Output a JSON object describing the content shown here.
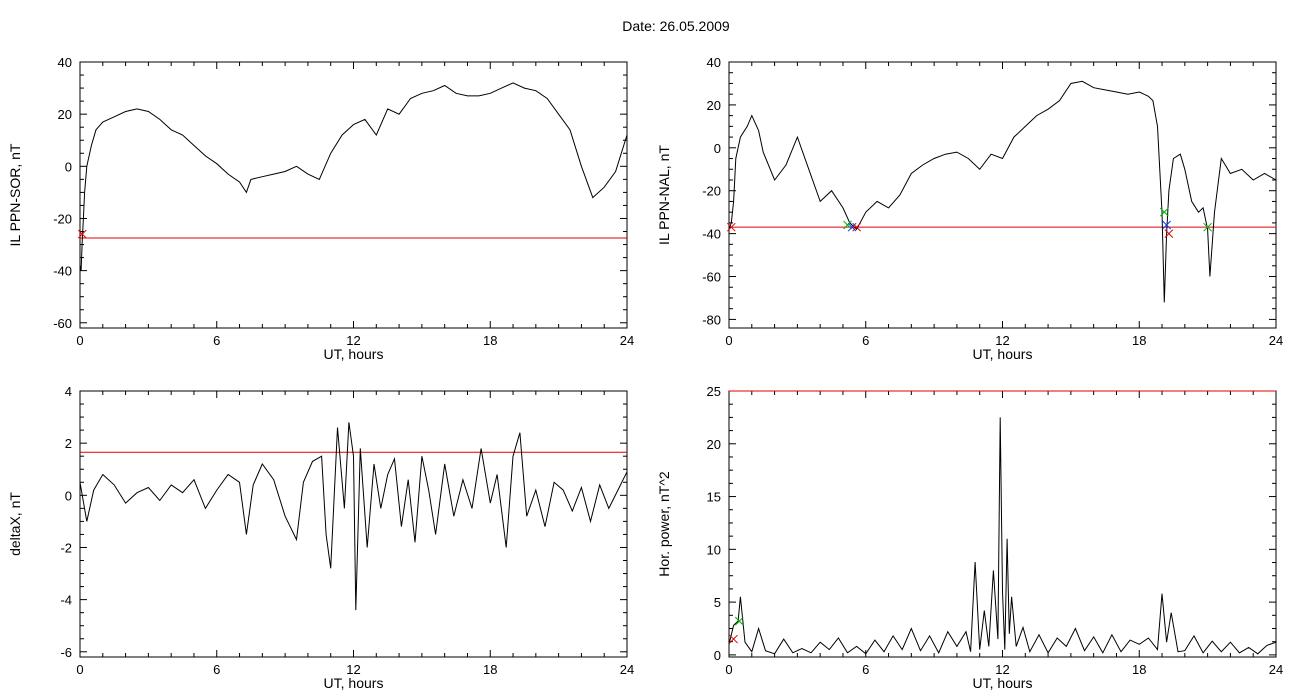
{
  "figure": {
    "title": "Date:  26.05.2009"
  },
  "chart_data": [
    {
      "id": "il-sor",
      "type": "line",
      "xlabel": "UT, hours",
      "ylabel": "IL PPN-SOR, nT",
      "xlim": [
        0,
        24
      ],
      "ylim": [
        -62,
        40
      ],
      "xticks": [
        0,
        6,
        12,
        18,
        24
      ],
      "yticks": [
        -60,
        -40,
        -20,
        0,
        20,
        40
      ],
      "threshold": -27.5,
      "series": [
        {
          "x": [
            0.0,
            0.05,
            0.1,
            0.15,
            0.2,
            0.3,
            0.5,
            0.7,
            1.0,
            1.5,
            2.0,
            2.5,
            3.0,
            3.5,
            4.0,
            4.5,
            5.0,
            5.5,
            6.0,
            6.5,
            7.0,
            7.3,
            7.5,
            8.0,
            8.5,
            9.0,
            9.5,
            10.0,
            10.5,
            11.0,
            11.5,
            12.0,
            12.5,
            13.0,
            13.5,
            14.0,
            14.5,
            15.0,
            15.5,
            16.0,
            16.5,
            17.0,
            17.5,
            18.0,
            18.5,
            19.0,
            19.5,
            20.0,
            20.5,
            21.0,
            21.5,
            22.0,
            22.5,
            23.0,
            23.5,
            24.0
          ],
          "values": [
            -38,
            -40,
            -28,
            -20,
            -10,
            0,
            8,
            14,
            17,
            19,
            21,
            22,
            21,
            18,
            14,
            12,
            8,
            4,
            1,
            -3,
            -6,
            -10,
            -5,
            -4,
            -3,
            -2,
            0,
            -3,
            -5,
            5,
            12,
            16,
            18,
            12,
            22,
            20,
            26,
            28,
            29,
            31,
            28,
            27,
            27,
            28,
            30,
            32,
            30,
            29,
            26,
            20,
            14,
            0,
            -12,
            -8,
            -2,
            12
          ]
        }
      ],
      "markers": {
        "x": [
          0.1
        ],
        "y": [
          -26
        ]
      }
    },
    {
      "id": "il-nal",
      "type": "line",
      "xlabel": "UT, hours",
      "ylabel": "IL PPN-NAL, nT",
      "xlim": [
        0,
        24
      ],
      "ylim": [
        -84,
        40
      ],
      "xticks": [
        0,
        6,
        12,
        18,
        24
      ],
      "yticks": [
        -80,
        -60,
        -40,
        -20,
        0,
        20,
        40
      ],
      "threshold": -37,
      "series": [
        {
          "x": [
            0.0,
            0.1,
            0.2,
            0.3,
            0.5,
            0.8,
            1.0,
            1.3,
            1.5,
            2.0,
            2.5,
            3.0,
            3.5,
            4.0,
            4.5,
            5.0,
            5.3,
            5.6,
            6.0,
            6.5,
            7.0,
            7.5,
            8.0,
            8.5,
            9.0,
            9.5,
            10.0,
            10.5,
            11.0,
            11.5,
            12.0,
            12.5,
            13.0,
            13.5,
            14.0,
            14.5,
            15.0,
            15.5,
            16.0,
            16.5,
            17.0,
            17.5,
            18.0,
            18.4,
            18.6,
            18.8,
            19.0,
            19.1,
            19.2,
            19.3,
            19.5,
            19.8,
            20.0,
            20.3,
            20.6,
            20.8,
            21.0,
            21.1,
            21.3,
            21.6,
            22.0,
            22.5,
            23.0,
            23.5,
            24.0
          ],
          "values": [
            -38,
            -35,
            -25,
            -5,
            5,
            10,
            15,
            8,
            -2,
            -15,
            -8,
            5,
            -10,
            -25,
            -20,
            -28,
            -35,
            -38,
            -30,
            -25,
            -28,
            -22,
            -12,
            -8,
            -5,
            -3,
            -2,
            -5,
            -10,
            -3,
            -5,
            5,
            10,
            15,
            18,
            22,
            30,
            31,
            28,
            27,
            26,
            25,
            26,
            24,
            22,
            10,
            -30,
            -72,
            -40,
            -20,
            -5,
            -3,
            -10,
            -25,
            -30,
            -28,
            -38,
            -60,
            -30,
            -5,
            -12,
            -10,
            -15,
            -12,
            -15
          ]
        }
      ],
      "markers": {
        "x": [
          0.1,
          5.2,
          5.4,
          5.6,
          19.1,
          19.2,
          19.3,
          21.0
        ],
        "y": [
          -37,
          -36,
          -37,
          -37,
          -30,
          -36,
          -40,
          -37
        ]
      }
    },
    {
      "id": "deltax",
      "type": "line",
      "xlabel": "UT, hours",
      "ylabel": "deltaX, nT",
      "xlim": [
        0,
        24
      ],
      "ylim": [
        -6.2,
        4
      ],
      "xticks": [
        0,
        6,
        12,
        18,
        24
      ],
      "yticks": [
        -6,
        -4,
        -2,
        0,
        2,
        4
      ],
      "threshold": 1.65,
      "series": [
        {
          "x": [
            0.0,
            0.3,
            0.6,
            1.0,
            1.5,
            2.0,
            2.5,
            3.0,
            3.5,
            4.0,
            4.5,
            5.0,
            5.5,
            6.0,
            6.5,
            7.0,
            7.3,
            7.6,
            8.0,
            8.5,
            9.0,
            9.5,
            9.8,
            10.2,
            10.6,
            10.8,
            11.0,
            11.3,
            11.6,
            11.8,
            12.0,
            12.1,
            12.3,
            12.6,
            12.9,
            13.2,
            13.5,
            13.8,
            14.1,
            14.4,
            14.7,
            15.0,
            15.3,
            15.6,
            16.0,
            16.4,
            16.8,
            17.2,
            17.6,
            18.0,
            18.3,
            18.7,
            19.0,
            19.3,
            19.6,
            20.0,
            20.4,
            20.8,
            21.2,
            21.6,
            22.0,
            22.4,
            22.8,
            23.2,
            23.6,
            24.0
          ],
          "values": [
            0.5,
            -1.0,
            0.2,
            0.8,
            0.4,
            -0.3,
            0.1,
            0.3,
            -0.2,
            0.4,
            0.1,
            0.6,
            -0.5,
            0.2,
            0.8,
            0.5,
            -1.5,
            0.4,
            1.2,
            0.6,
            -0.8,
            -1.7,
            0.5,
            1.3,
            1.5,
            -1.5,
            -2.8,
            2.6,
            -0.5,
            2.8,
            1.5,
            -4.4,
            1.8,
            -2.0,
            1.2,
            -0.5,
            0.8,
            1.4,
            -1.2,
            0.6,
            -1.8,
            1.5,
            0.2,
            -1.5,
            1.2,
            -0.8,
            0.6,
            -0.5,
            1.8,
            -0.3,
            0.8,
            -2.0,
            1.5,
            2.4,
            -0.8,
            0.2,
            -1.2,
            0.5,
            0.2,
            -0.6,
            0.3,
            -1.0,
            0.4,
            -0.5,
            0.2,
            0.9
          ]
        }
      ]
    },
    {
      "id": "hor-power",
      "type": "line",
      "xlabel": "UT, hours",
      "ylabel": "Hor. power, nT^2",
      "xlim": [
        0,
        24
      ],
      "ylim": [
        -0.2,
        25
      ],
      "xticks": [
        0,
        6,
        12,
        18,
        24
      ],
      "yticks": [
        0,
        5,
        10,
        15,
        20,
        25
      ],
      "threshold": 25,
      "series": [
        {
          "x": [
            0.0,
            0.2,
            0.4,
            0.5,
            0.7,
            1.0,
            1.3,
            1.6,
            2.0,
            2.4,
            2.8,
            3.2,
            3.6,
            4.0,
            4.4,
            4.8,
            5.2,
            5.6,
            6.0,
            6.4,
            6.8,
            7.2,
            7.6,
            8.0,
            8.4,
            8.8,
            9.2,
            9.6,
            10.0,
            10.4,
            10.6,
            10.8,
            11.0,
            11.2,
            11.4,
            11.6,
            11.8,
            11.9,
            12.0,
            12.1,
            12.2,
            12.3,
            12.4,
            12.6,
            12.9,
            13.2,
            13.6,
            14.0,
            14.4,
            14.8,
            15.2,
            15.6,
            16.0,
            16.4,
            16.8,
            17.2,
            17.6,
            18.0,
            18.4,
            18.8,
            19.0,
            19.2,
            19.4,
            19.7,
            20.0,
            20.4,
            20.8,
            21.2,
            21.6,
            22.0,
            22.4,
            22.8,
            23.2,
            23.6,
            24.0
          ],
          "values": [
            1.0,
            2.8,
            3.2,
            5.5,
            1.2,
            0.3,
            2.5,
            0.4,
            0.1,
            1.5,
            0.2,
            0.6,
            0.2,
            1.2,
            0.5,
            1.6,
            0.2,
            0.8,
            0.1,
            1.4,
            0.3,
            1.8,
            0.5,
            2.5,
            0.4,
            1.8,
            0.2,
            2.2,
            0.8,
            2.2,
            0.3,
            8.8,
            0.5,
            4.2,
            0.8,
            8.0,
            1.5,
            22.5,
            6.0,
            0.5,
            11.0,
            2.0,
            5.5,
            0.8,
            2.6,
            0.3,
            1.9,
            0.2,
            1.6,
            0.8,
            2.5,
            0.4,
            1.7,
            0.2,
            1.9,
            0.3,
            1.4,
            1.0,
            1.6,
            0.5,
            5.8,
            1.2,
            4.0,
            0.3,
            0.4,
            1.8,
            0.2,
            1.3,
            0.3,
            1.2,
            0.2,
            0.7,
            0.1,
            0.9,
            1.2
          ]
        }
      ],
      "markers": {
        "x": [
          0.2,
          0.45
        ],
        "y": [
          1.5,
          3.2
        ]
      }
    }
  ],
  "colors": {
    "line": "#000000",
    "threshold": "#e00000",
    "marker_red": "#e00000",
    "marker_green": "#00b000",
    "marker_blue": "#0040ff"
  }
}
